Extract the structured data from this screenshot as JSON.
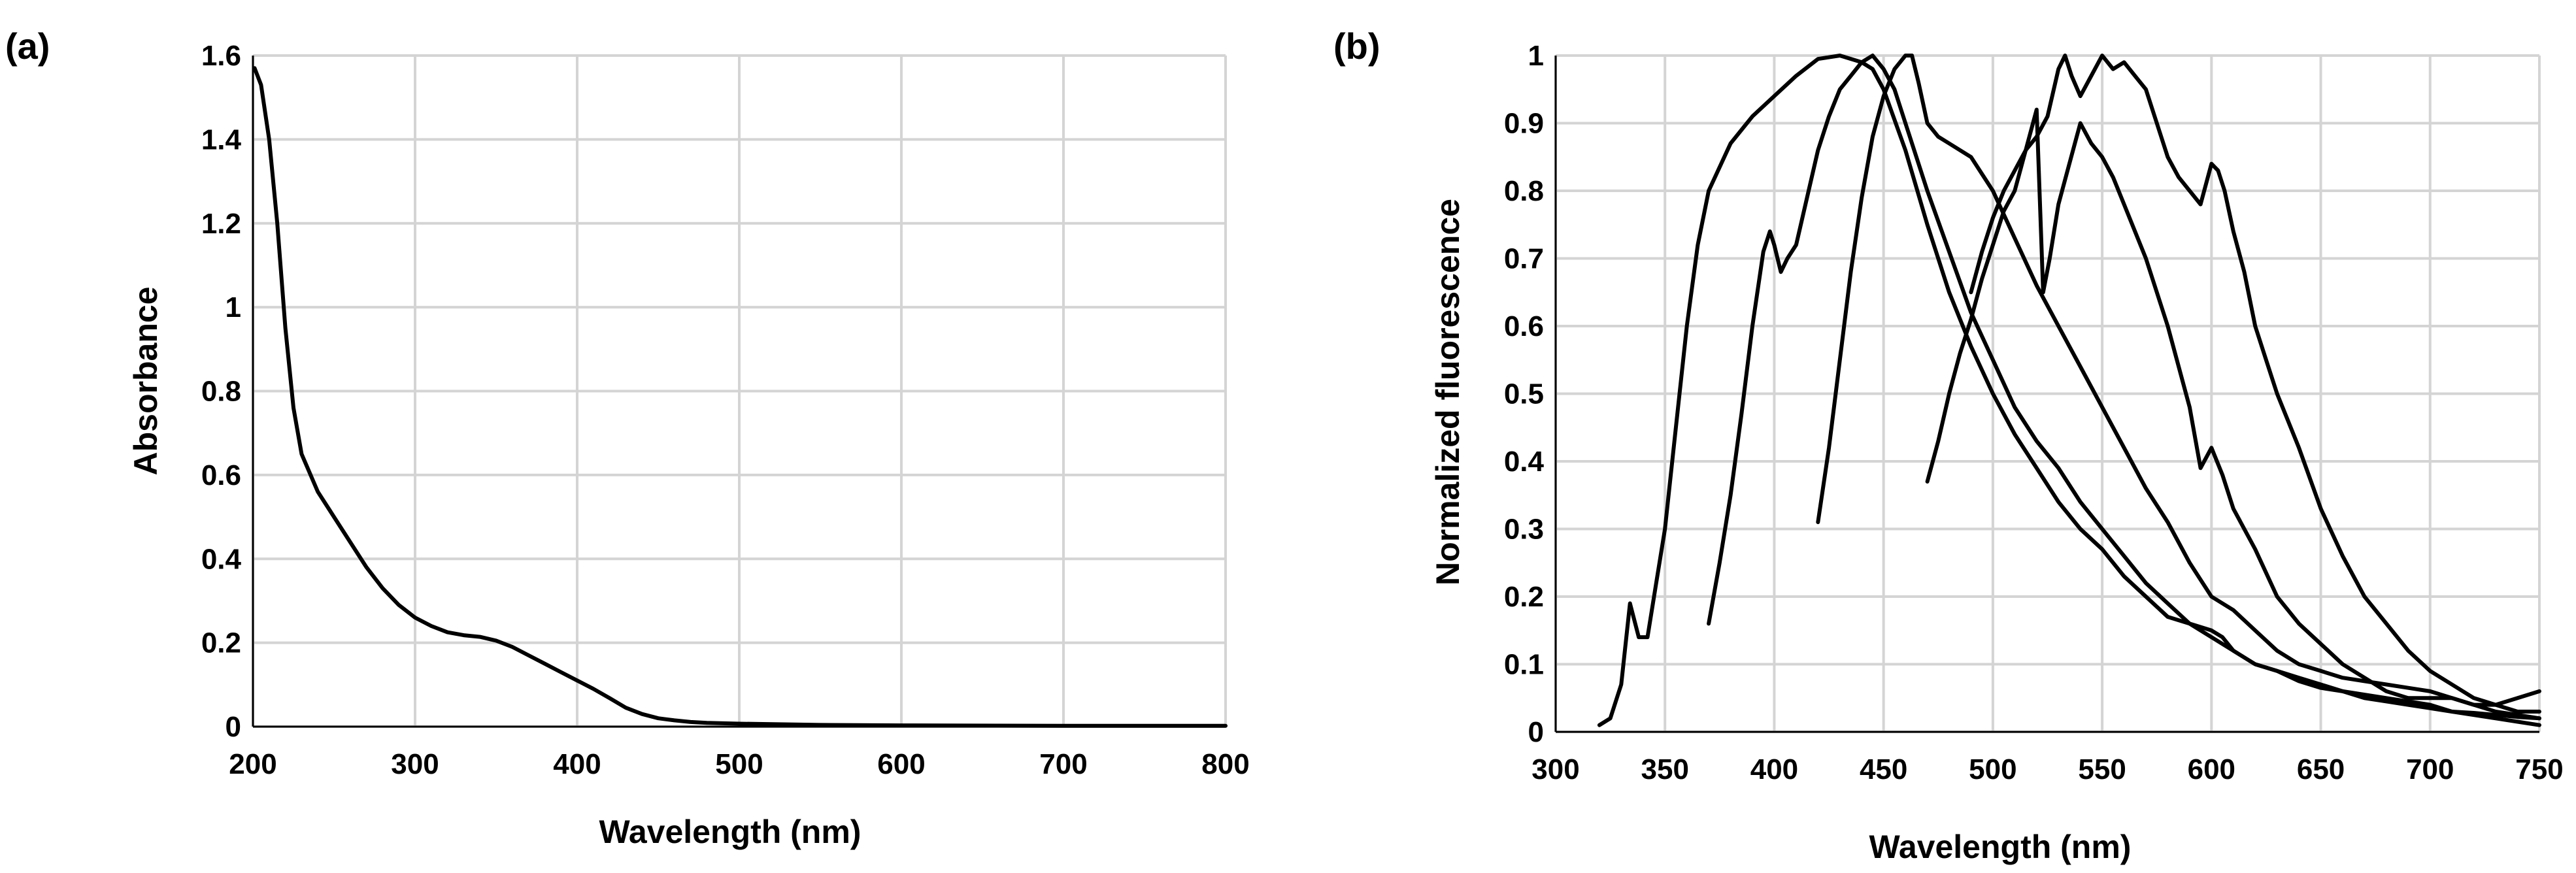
{
  "chart_data": [
    {
      "panel": "(a)",
      "type": "line",
      "xlabel": "Wavelength (nm)",
      "ylabel": "Absorbance",
      "xlim": [
        200,
        800
      ],
      "ylim": [
        0,
        1.6
      ],
      "xticks": [
        "200",
        "300",
        "400",
        "500",
        "600",
        "700",
        "800"
      ],
      "yticks": [
        "0",
        "0.2",
        "0.4",
        "0.6",
        "0.8",
        "1",
        "1.2",
        "1.4",
        "1.6"
      ],
      "grid": true,
      "series": [
        {
          "x": [
            201,
            205,
            210,
            215,
            220,
            225,
            230,
            240,
            250,
            260,
            270,
            280,
            290,
            300,
            310,
            320,
            330,
            340,
            350,
            360,
            370,
            380,
            390,
            400,
            410,
            420,
            430,
            440,
            450,
            460,
            470,
            480,
            500,
            550,
            600,
            700,
            800
          ],
          "y": [
            1.57,
            1.53,
            1.4,
            1.2,
            0.95,
            0.76,
            0.65,
            0.56,
            0.5,
            0.44,
            0.38,
            0.33,
            0.29,
            0.26,
            0.24,
            0.225,
            0.218,
            0.214,
            0.205,
            0.19,
            0.17,
            0.15,
            0.13,
            0.11,
            0.09,
            0.068,
            0.045,
            0.03,
            0.02,
            0.015,
            0.011,
            0.009,
            0.007,
            0.004,
            0.003,
            0.002,
            0.002
          ]
        }
      ]
    },
    {
      "panel": "(b)",
      "type": "line",
      "xlabel": "Wavelength (nm)",
      "ylabel": "Normalized fluorescence",
      "xlim": [
        300,
        750
      ],
      "ylim": [
        0,
        1
      ],
      "xticks": [
        "300",
        "350",
        "400",
        "450",
        "500",
        "550",
        "600",
        "650",
        "700",
        "750"
      ],
      "yticks": [
        "0",
        "0.1",
        "0.2",
        "0.3",
        "0.4",
        "0.5",
        "0.6",
        "0.7",
        "0.8",
        "0.9",
        "1"
      ],
      "grid": true,
      "series": [
        {
          "x": [
            320,
            325,
            330,
            334,
            338,
            342,
            346,
            350,
            355,
            360,
            365,
            370,
            380,
            390,
            400,
            410,
            420,
            430,
            440,
            445,
            450,
            460,
            470,
            480,
            490,
            500,
            510,
            520,
            530,
            540,
            550,
            560,
            570,
            580,
            590,
            600,
            610,
            620,
            630,
            640,
            650,
            660,
            670,
            680,
            690,
            700,
            710,
            720,
            730,
            740,
            750
          ],
          "y": [
            0.01,
            0.02,
            0.07,
            0.19,
            0.14,
            0.14,
            0.22,
            0.3,
            0.45,
            0.6,
            0.72,
            0.8,
            0.87,
            0.91,
            0.94,
            0.97,
            0.995,
            1.0,
            0.99,
            0.98,
            0.95,
            0.86,
            0.75,
            0.65,
            0.57,
            0.5,
            0.44,
            0.39,
            0.34,
            0.3,
            0.27,
            0.23,
            0.2,
            0.17,
            0.16,
            0.14,
            0.12,
            0.1,
            0.09,
            0.075,
            0.065,
            0.06,
            0.055,
            0.05,
            0.045,
            0.04,
            0.03,
            0.025,
            0.02,
            0.015,
            0.01
          ]
        },
        {
          "x": [
            370,
            375,
            380,
            385,
            390,
            395,
            398,
            400,
            403,
            406,
            410,
            415,
            420,
            425,
            430,
            435,
            440,
            445,
            450,
            455,
            460,
            470,
            480,
            490,
            500,
            510,
            520,
            530,
            540,
            550,
            560,
            570,
            580,
            590,
            600,
            605,
            610,
            620,
            630,
            640,
            650,
            660,
            670,
            680,
            690,
            700,
            710,
            720,
            730,
            740,
            750
          ],
          "y": [
            0.16,
            0.25,
            0.35,
            0.47,
            0.6,
            0.71,
            0.74,
            0.72,
            0.68,
            0.7,
            0.72,
            0.79,
            0.86,
            0.91,
            0.95,
            0.97,
            0.99,
            1.0,
            0.98,
            0.95,
            0.9,
            0.8,
            0.71,
            0.62,
            0.55,
            0.48,
            0.43,
            0.39,
            0.34,
            0.3,
            0.26,
            0.22,
            0.19,
            0.16,
            0.15,
            0.14,
            0.12,
            0.1,
            0.09,
            0.08,
            0.07,
            0.06,
            0.05,
            0.045,
            0.04,
            0.035,
            0.03,
            0.028,
            0.025,
            0.022,
            0.02
          ]
        },
        {
          "x": [
            420,
            425,
            430,
            435,
            440,
            445,
            450,
            455,
            460,
            463,
            466,
            470,
            475,
            480,
            490,
            500,
            510,
            520,
            530,
            540,
            550,
            560,
            570,
            580,
            590,
            600,
            610,
            620,
            630,
            640,
            650,
            660,
            670,
            680,
            690,
            700,
            710,
            720,
            730,
            740,
            750
          ],
          "y": [
            0.31,
            0.42,
            0.55,
            0.68,
            0.79,
            0.88,
            0.94,
            0.98,
            1.0,
            1.0,
            0.96,
            0.9,
            0.88,
            0.87,
            0.85,
            0.8,
            0.73,
            0.66,
            0.6,
            0.54,
            0.48,
            0.42,
            0.36,
            0.31,
            0.25,
            0.2,
            0.18,
            0.15,
            0.12,
            0.1,
            0.09,
            0.08,
            0.075,
            0.07,
            0.065,
            0.06,
            0.05,
            0.04,
            0.03,
            0.025,
            0.02
          ]
        },
        {
          "x": [
            470,
            475,
            480,
            485,
            490,
            495,
            500,
            505,
            510,
            515,
            520,
            523,
            526,
            530,
            535,
            540,
            545,
            550,
            555,
            560,
            570,
            580,
            590,
            595,
            600,
            605,
            610,
            620,
            630,
            640,
            650,
            660,
            670,
            680,
            690,
            700,
            710,
            720,
            730,
            740,
            750
          ],
          "y": [
            0.37,
            0.43,
            0.5,
            0.56,
            0.61,
            0.67,
            0.72,
            0.77,
            0.8,
            0.86,
            0.92,
            0.65,
            0.7,
            0.78,
            0.84,
            0.9,
            0.87,
            0.85,
            0.82,
            0.78,
            0.7,
            0.6,
            0.48,
            0.39,
            0.42,
            0.38,
            0.33,
            0.27,
            0.2,
            0.16,
            0.13,
            0.1,
            0.08,
            0.06,
            0.05,
            0.05,
            0.05,
            0.04,
            0.04,
            0.05,
            0.06
          ]
        },
        {
          "x": [
            490,
            495,
            500,
            505,
            510,
            515,
            520,
            525,
            530,
            533,
            536,
            540,
            545,
            550,
            555,
            560,
            565,
            570,
            575,
            580,
            585,
            590,
            595,
            600,
            603,
            606,
            610,
            615,
            620,
            625,
            630,
            640,
            650,
            660,
            670,
            680,
            690,
            700,
            710,
            720,
            730,
            740,
            750
          ],
          "y": [
            0.65,
            0.71,
            0.76,
            0.8,
            0.83,
            0.86,
            0.88,
            0.91,
            0.98,
            1.0,
            0.97,
            0.94,
            0.97,
            1.0,
            0.98,
            0.99,
            0.97,
            0.95,
            0.9,
            0.85,
            0.82,
            0.8,
            0.78,
            0.84,
            0.83,
            0.8,
            0.74,
            0.68,
            0.6,
            0.55,
            0.5,
            0.42,
            0.33,
            0.26,
            0.2,
            0.16,
            0.12,
            0.09,
            0.07,
            0.05,
            0.04,
            0.03,
            0.03
          ]
        }
      ]
    }
  ]
}
